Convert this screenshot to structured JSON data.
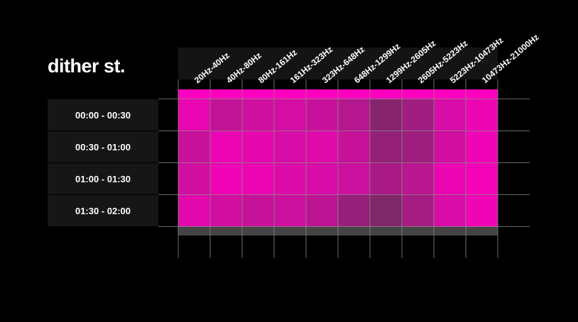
{
  "chart_data": {
    "type": "heatmap",
    "title": "dither st.",
    "columns": [
      "20Hz-40Hz",
      "40Hz-80Hz",
      "80Hz-161Hz",
      "161Hz-323Hz",
      "323Hz-648Hz",
      "648Hz-1299Hz",
      "1299Hz-2605Hz",
      "2605Hz-5223Hz",
      "5223Hz-10473Hz",
      "10473Hz-21000Hz"
    ],
    "rows": [
      "00:00 - 00:30",
      "00:30 - 01:00",
      "01:00 - 01:30",
      "01:30 - 02:00"
    ],
    "values": [
      [
        0.88,
        0.68,
        0.75,
        0.78,
        0.72,
        0.62,
        0.38,
        0.52,
        0.8,
        0.9
      ],
      [
        0.72,
        0.9,
        0.86,
        0.8,
        0.84,
        0.7,
        0.45,
        0.5,
        0.76,
        0.92
      ],
      [
        0.76,
        0.92,
        0.9,
        0.82,
        0.8,
        0.74,
        0.56,
        0.64,
        0.9,
        0.95
      ],
      [
        0.85,
        0.76,
        0.7,
        0.74,
        0.66,
        0.46,
        0.34,
        0.54,
        0.8,
        0.92
      ]
    ],
    "color_low": "#3c3c3c",
    "color_high": "#ff00c0",
    "header_color": "#ff00c0",
    "footer_color": "#444444",
    "grid": true
  }
}
